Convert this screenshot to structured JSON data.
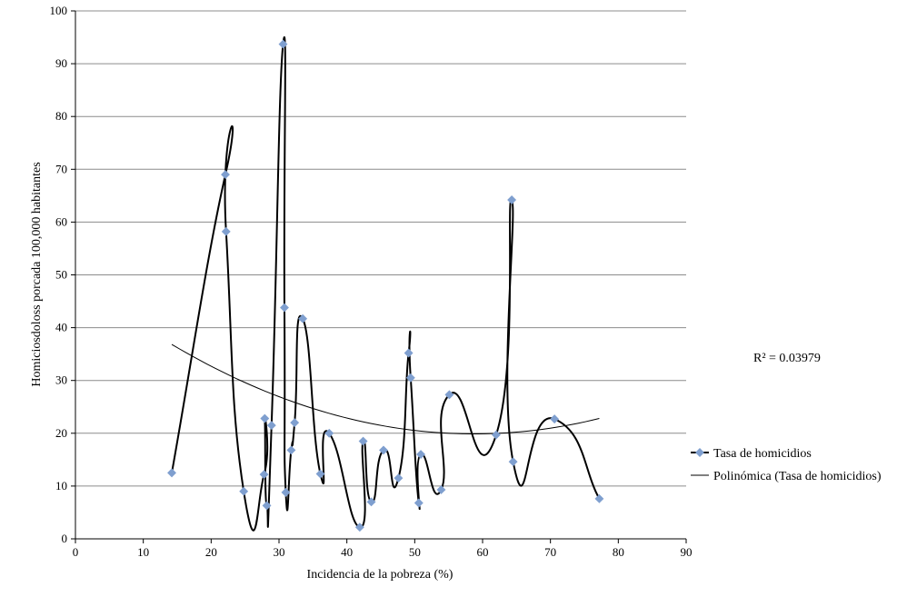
{
  "chart_data": {
    "type": "scatter",
    "title": "",
    "xlabel": "Incidencia de la pobreza (%)",
    "ylabel": "Homiciosdoloss porcada 100,000 habitantes",
    "xlim": [
      0,
      90
    ],
    "ylim": [
      0,
      100
    ],
    "xticks": [
      0,
      10,
      20,
      30,
      40,
      50,
      60,
      70,
      80,
      90
    ],
    "yticks": [
      0,
      10,
      20,
      30,
      40,
      50,
      60,
      70,
      80,
      90,
      100
    ],
    "grid": "horizontal",
    "legend_position": "right",
    "colors": {
      "line": "#000000",
      "marker": "#7f9fcf",
      "grid": "#8c8c8c"
    },
    "series": [
      {
        "name": "Tasa de homicidios",
        "points": [
          [
            14.2,
            12.5
          ],
          [
            22.1,
            69.0
          ],
          [
            22.2,
            58.2
          ],
          [
            24.8,
            9.0
          ],
          [
            27.8,
            12.2
          ],
          [
            27.9,
            22.8
          ],
          [
            28.2,
            6.3
          ],
          [
            28.9,
            21.5
          ],
          [
            30.6,
            93.7
          ],
          [
            30.8,
            43.8
          ],
          [
            31.0,
            8.8
          ],
          [
            31.8,
            16.8
          ],
          [
            32.3,
            22.0
          ],
          [
            33.5,
            41.7
          ],
          [
            36.1,
            12.3
          ],
          [
            37.4,
            20.0
          ],
          [
            41.9,
            2.2
          ],
          [
            42.4,
            18.5
          ],
          [
            43.6,
            7.0
          ],
          [
            45.4,
            16.8
          ],
          [
            47.6,
            11.5
          ],
          [
            49.1,
            35.2
          ],
          [
            49.4,
            30.5
          ],
          [
            50.6,
            6.8
          ],
          [
            50.9,
            16.0
          ],
          [
            53.9,
            9.3
          ],
          [
            55.1,
            27.3
          ],
          [
            62.0,
            19.7
          ],
          [
            64.3,
            64.2
          ],
          [
            64.5,
            14.6
          ],
          [
            70.6,
            22.7
          ],
          [
            77.2,
            7.6
          ]
        ]
      },
      {
        "name": "Polinómica  (Tasa de homicidios)",
        "trend": "polynomial",
        "x_range": [
          14.2,
          77.2
        ],
        "r2_label": "R² = 0.03979"
      }
    ]
  }
}
